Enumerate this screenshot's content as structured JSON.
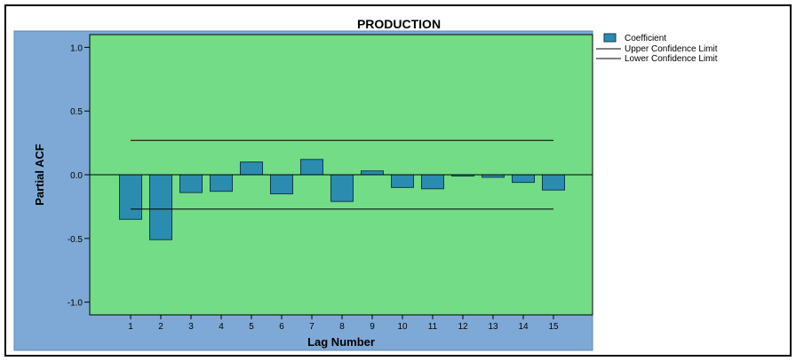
{
  "chart_data": {
    "type": "bar",
    "title": "PRODUCTION",
    "xlabel": "Lag Number",
    "ylabel": "Partial ACF",
    "ylim": [
      -1.1,
      1.1
    ],
    "yticks": [
      1.0,
      0.5,
      0.0,
      -0.5,
      -1.0
    ],
    "ytick_labels": [
      "1.0",
      "0.5",
      "0.0",
      "-0.5",
      "-1.0"
    ],
    "categories": [
      "1",
      "2",
      "3",
      "4",
      "5",
      "6",
      "7",
      "8",
      "9",
      "10",
      "11",
      "12",
      "13",
      "14",
      "15"
    ],
    "series": [
      {
        "name": "Coefficient",
        "values": [
          -0.35,
          -0.51,
          -0.14,
          -0.13,
          0.1,
          -0.15,
          0.12,
          -0.21,
          0.03,
          -0.1,
          -0.11,
          -0.01,
          -0.02,
          -0.06,
          -0.12
        ]
      }
    ],
    "upper_confidence_limit": 0.27,
    "lower_confidence_limit": -0.27,
    "legend": {
      "placement": "top-right",
      "entries": [
        "Coefficient",
        "Upper Confidence Limit",
        "Lower Confidence Limit"
      ]
    },
    "grid": false,
    "colors": {
      "plot_background": "#72dc86",
      "outer_background": "#7ea9d6",
      "bar_fill": "#2b8caf",
      "bar_stroke": "#123a4d",
      "line": "#000000"
    }
  }
}
